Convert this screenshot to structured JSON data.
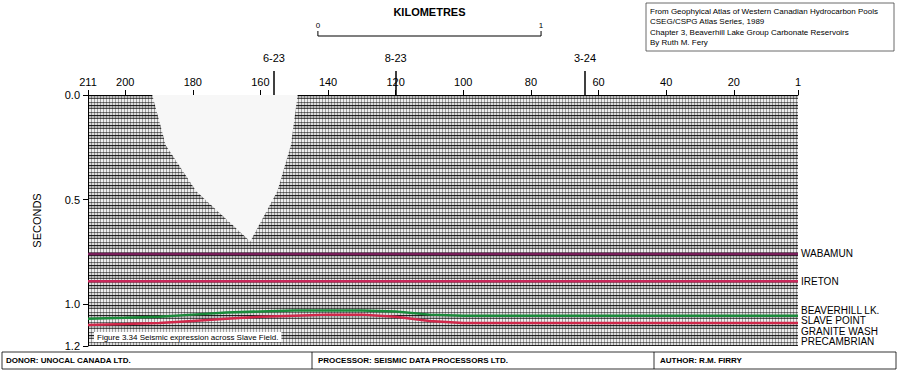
{
  "chart_data": {
    "type": "line",
    "y_label": "SECONDS",
    "xlim": [
      211,
      1
    ],
    "xticks": [
      211,
      200,
      180,
      160,
      140,
      120,
      100,
      80,
      60,
      40,
      20,
      1
    ],
    "ylim": [
      1.2,
      0
    ],
    "yticks": [
      {
        "value": 0,
        "label": "0.0"
      },
      {
        "value": 0.5,
        "label": "0.5"
      },
      {
        "value": 1,
        "label": "1.0"
      },
      {
        "value": 1.2,
        "label": "1.2"
      }
    ],
    "grid": false,
    "x": [
      211,
      200,
      190,
      180,
      170,
      160,
      150,
      140,
      130,
      120,
      110,
      100,
      80,
      60,
      40,
      20,
      1
    ],
    "series": [
      {
        "name": "WABAMUN",
        "color": "#7a1f5c",
        "values": [
          0.76,
          0.76,
          0.76,
          0.76,
          0.76,
          0.76,
          0.76,
          0.76,
          0.76,
          0.76,
          0.76,
          0.76,
          0.76,
          0.76,
          0.76,
          0.76,
          0.76
        ]
      },
      {
        "name": "IRETON",
        "color": "#c8285a",
        "values": [
          0.89,
          0.89,
          0.89,
          0.89,
          0.89,
          0.89,
          0.89,
          0.89,
          0.89,
          0.89,
          0.89,
          0.89,
          0.89,
          0.89,
          0.89,
          0.89,
          0.89
        ]
      },
      {
        "name": "BEAVERHILL LK.",
        "color": "#1a8a3a",
        "values": [
          1.07,
          1.065,
          1.06,
          1.05,
          1.04,
          1.035,
          1.03,
          1.03,
          1.03,
          1.035,
          1.05,
          1.055,
          1.055,
          1.055,
          1.055,
          1.055,
          1.055
        ]
      },
      {
        "name": "SLAVE POINT",
        "color": "#d0284a",
        "values": [
          1.1,
          1.095,
          1.09,
          1.08,
          1.07,
          1.06,
          1.055,
          1.05,
          1.05,
          1.06,
          1.08,
          1.09,
          1.09,
          1.09,
          1.09,
          1.09,
          1.09
        ]
      }
    ],
    "horizon_labels": [
      {
        "text": "WABAMUN",
        "time": 0.76
      },
      {
        "text": "IRETON",
        "time": 0.89
      },
      {
        "text": "BEAVERHILL LK.",
        "time": 1.03
      },
      {
        "text": "SLAVE POINT",
        "time": 1.08
      },
      {
        "text": "GRANITE WASH",
        "time": 1.13
      },
      {
        "text": "PRECAMBRIAN",
        "time": 1.18
      }
    ],
    "mute": {
      "x": [
        192,
        188,
        179,
        163,
        155,
        151,
        149
      ],
      "values": [
        0,
        0.24,
        0.46,
        0.7,
        0.46,
        0.24,
        0
      ]
    },
    "wells": [
      {
        "trace": 156,
        "label": "6-23"
      },
      {
        "trace": 120,
        "label": "8-23"
      },
      {
        "trace": 64,
        "label": "3-24"
      }
    ],
    "scale_bar": {
      "title": "KILOMETRES",
      "from_trace": 143,
      "to_trace": 77,
      "ticks": [
        0,
        1
      ]
    },
    "caption": "Figure 3.34 Seismic expression across Slave Field.",
    "footer": [
      "DONOR: UNOCAL CANADA LTD.",
      "PROCESSOR: SEISMIC DATA PROCESSORS LTD.",
      "AUTHOR: R.M. FIRRY"
    ],
    "source": [
      "From Geophyical Atlas of Western Canadian Hydrocarbon Pools",
      "CSEG/CSPG Atlas Series, 1989",
      "Chapter 3, Beaverhill Lake Group Carbonate Reservoirs",
      "By Ruth M. Fery"
    ]
  }
}
